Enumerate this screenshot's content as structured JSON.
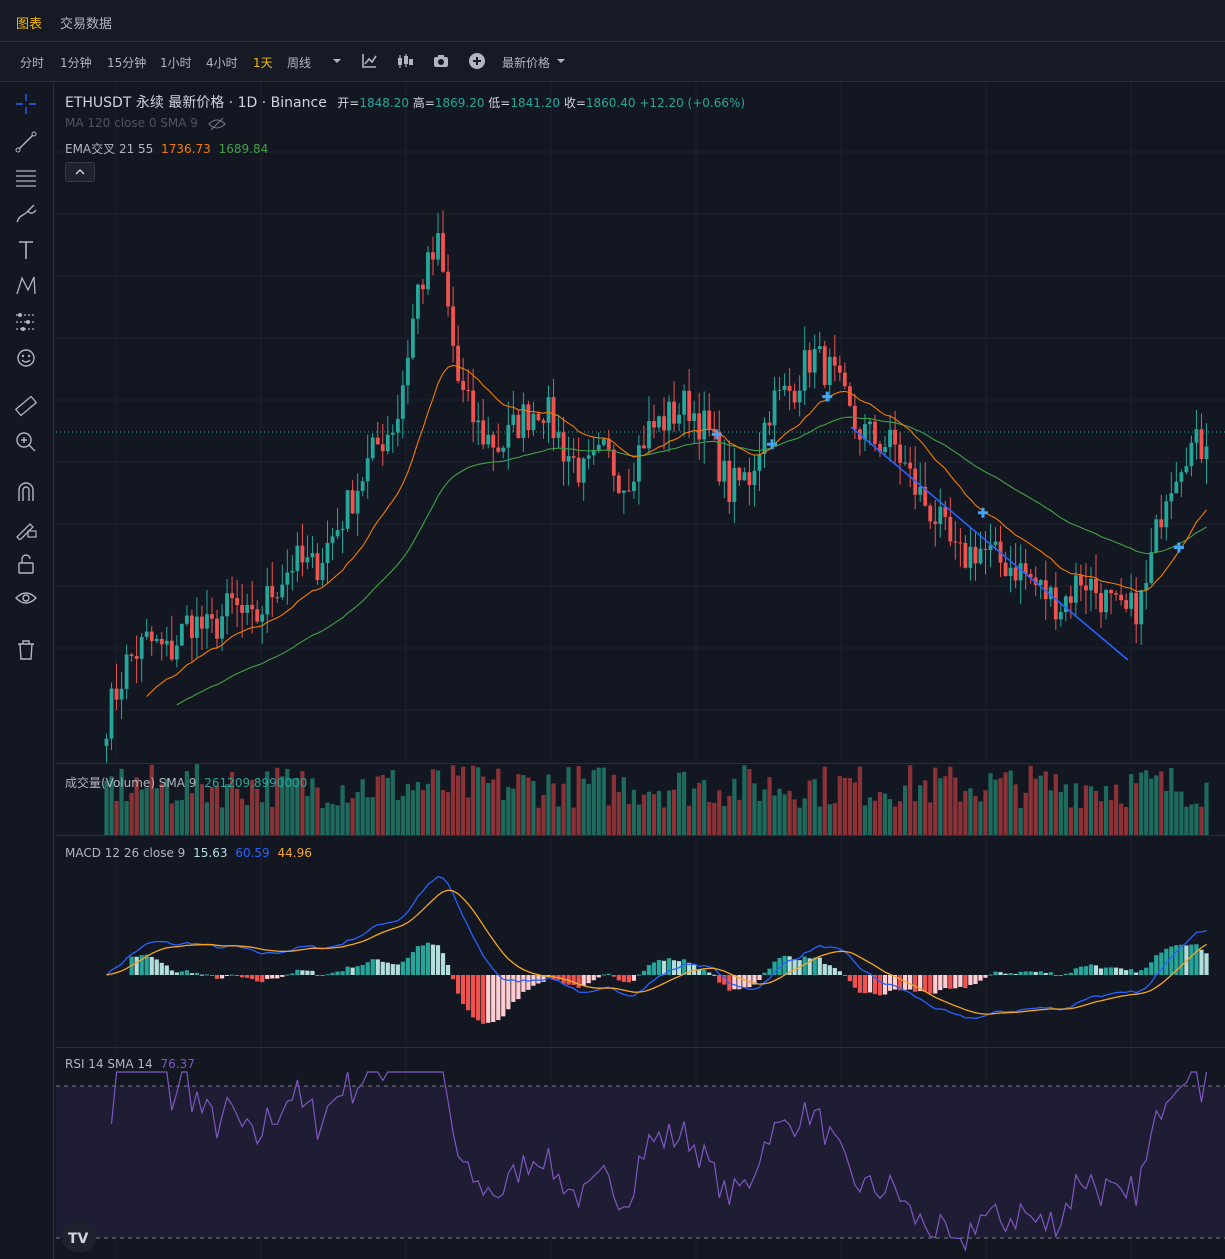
{
  "nav": {
    "tabs": [
      {
        "label": "图表",
        "active": true
      },
      {
        "label": "交易数据",
        "active": false
      }
    ]
  },
  "toolbar": {
    "timeframes": [
      {
        "label": "分时",
        "active": false
      },
      {
        "label": "1分钟",
        "active": false
      },
      {
        "label": "15分钟",
        "active": false
      },
      {
        "label": "1小时",
        "active": false
      },
      {
        "label": "4小时",
        "active": false
      },
      {
        "label": "1天",
        "active": true
      },
      {
        "label": "周线",
        "active": false
      }
    ],
    "icons": [
      "chevron-down-icon",
      "indicators-icon",
      "candle-type-icon",
      "camera-icon",
      "add-icon"
    ],
    "price_type_label": "最新价格"
  },
  "left_tools": [
    "crosshair-icon",
    "trend-line-icon",
    "fib-icon",
    "brush-icon",
    "text-icon",
    "pattern-icon",
    "forecast-icon",
    "emoji-icon",
    "ruler-icon",
    "zoom-in-icon",
    "magnet-icon",
    "lock-drawing-icon",
    "lock-icon",
    "eye-icon",
    "trash-icon"
  ],
  "main": {
    "symbol_title": "ETHUSDT 永续 最新价格 · 1D · Binance",
    "ohlc": {
      "open_label": "开=",
      "open": "1848.20",
      "high_label": "高=",
      "high": "1869.20",
      "low_label": "低=",
      "low": "1841.20",
      "close_label": "收=",
      "close": "1860.40",
      "change": "+12.20 (+0.66%)"
    },
    "ma_legend": "MA 120 close 0 SMA 9",
    "ema_legend": {
      "label": "EMA交叉 21 55",
      "fast": "1736.73",
      "slow": "1689.84"
    },
    "collapse_icon": "chevron-up-icon"
  },
  "volume": {
    "label": "成交量(Volume) SMA 9",
    "value": "261209.8990000"
  },
  "macd": {
    "label": "MACD 12 26 close 9",
    "hist": "15.63",
    "macd": "60.59",
    "signal": "44.96"
  },
  "rsi": {
    "label": "RSI 14 SMA 14",
    "value": "76.37",
    "upper": 70,
    "lower": 30
  },
  "colors": {
    "up": "#26a69a",
    "down": "#ef5350",
    "ema_fast": "#f57c00",
    "ema_slow": "#43a047",
    "macd_line": "#2962ff",
    "signal_line": "#f5a623",
    "rsi_line": "#7e57c2",
    "accent": "#f0b90b"
  },
  "chart_data": {
    "type": "candlestick",
    "symbol": "ETHUSDT",
    "interval": "1D",
    "last": {
      "open": 1848.2,
      "high": 1869.2,
      "low": 1841.2,
      "close": 1860.4,
      "change": 12.2,
      "change_pct": 0.66
    },
    "ema_fast_last": 1736.73,
    "ema_slow_last": 1689.84,
    "volume_sma_last": 261209.899,
    "macd_last": {
      "hist": 15.63,
      "macd": 60.59,
      "signal": 44.96
    },
    "rsi_last": 76.37,
    "approx_close_path": [
      1480,
      1560,
      1590,
      1570,
      1620,
      1600,
      1640,
      1610,
      1660,
      1700,
      1690,
      1740,
      1800,
      1860,
      1900,
      2080,
      2140,
      1940,
      1880,
      1860,
      1900,
      1920,
      1860,
      1820,
      1850,
      1810,
      1880,
      1900,
      1920,
      1880,
      1800,
      1820,
      1920,
      1940,
      1990,
      1960,
      1890,
      1870,
      1860,
      1800,
      1760,
      1700,
      1720,
      1700,
      1690,
      1660,
      1640,
      1680,
      1650,
      1620,
      1650,
      1800,
      1860,
      1860
    ]
  }
}
